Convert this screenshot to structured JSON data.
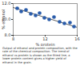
{
  "chart_data": {
    "type": "scatter",
    "x_label": "% protein",
    "y_label": "% ethanol",
    "x": [
      8.5,
      9.0,
      9.6,
      10.2,
      10.8,
      11.3,
      11.9,
      12.5,
      13.1,
      13.8,
      14.4,
      15.1,
      15.6
    ],
    "values": [
      11.4,
      11.0,
      11.2,
      10.7,
      10.5,
      10.8,
      10.2,
      10.0,
      10.3,
      9.7,
      9.5,
      9.6,
      9.1
    ],
    "color": "#2a5caa",
    "marker": "circle",
    "trendline": {
      "x": [
        8,
        16
      ],
      "values": [
        11.5,
        9.0
      ]
    },
    "xlim": [
      8,
      16
    ],
    "xticks": [
      8,
      12,
      16
    ],
    "ylim": [
      8,
      12
    ],
    "yticks": [
      8,
      10,
      12
    ],
    "grid": false,
    "caption": "Output of ethanol and protein composition, with the rate of the chemical composition. The trend of ethanol vs protein is shown as the fitted line; a lower protein content gives a higher yield of ethanol in the grain."
  }
}
